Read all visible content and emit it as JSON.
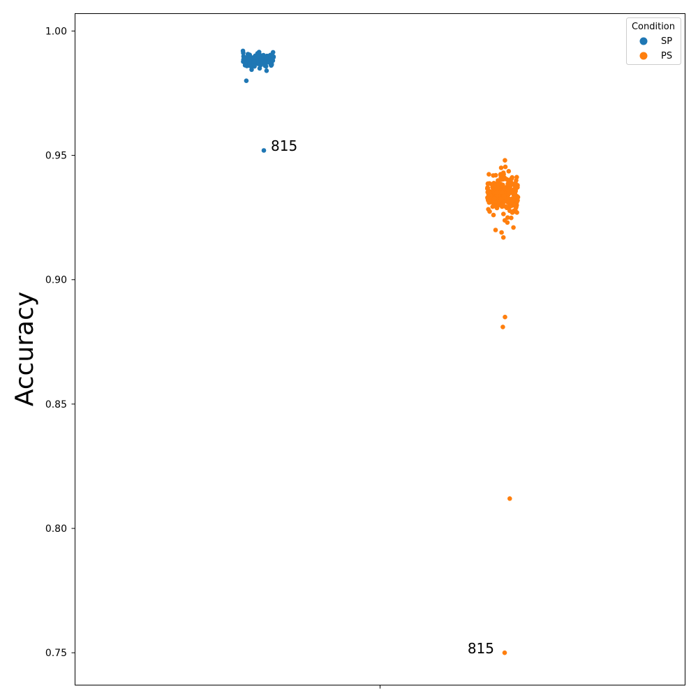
{
  "chart_data": {
    "type": "scatter",
    "title": "",
    "xlabel": "",
    "ylabel": "Accuracy",
    "ylim": [
      0.737,
      1.007
    ],
    "y_ticks": [
      0.75,
      0.8,
      0.85,
      0.9,
      0.95,
      1.0
    ],
    "y_tick_labels": [
      "0.75",
      "0.80",
      "0.85",
      "0.90",
      "0.95",
      "1.00"
    ],
    "grid": false,
    "legend": {
      "title": "Condition",
      "placement": "top-right"
    },
    "colors": {
      "SP": "#1f77b4",
      "PS": "#ff7f0e"
    },
    "series": [
      {
        "name": "SP",
        "cluster": {
          "center": 0.988,
          "spread": 0.0015,
          "count": 140
        },
        "points": [
          0.992,
          0.991,
          0.99,
          0.989,
          0.985,
          0.986,
          0.98,
          0.952
        ]
      },
      {
        "name": "PS",
        "cluster": {
          "center": 0.935,
          "spread": 0.0035,
          "count": 220
        },
        "points": [
          0.948,
          0.945,
          0.943,
          0.942,
          0.941,
          0.929,
          0.928,
          0.927,
          0.926,
          0.925,
          0.923,
          0.921,
          0.92,
          0.919,
          0.917,
          0.885,
          0.881,
          0.812,
          0.75
        ]
      }
    ],
    "annotations": [
      {
        "text": "815",
        "series": "SP",
        "y": 0.952
      },
      {
        "text": "815",
        "series": "PS",
        "y": 0.75
      }
    ]
  }
}
